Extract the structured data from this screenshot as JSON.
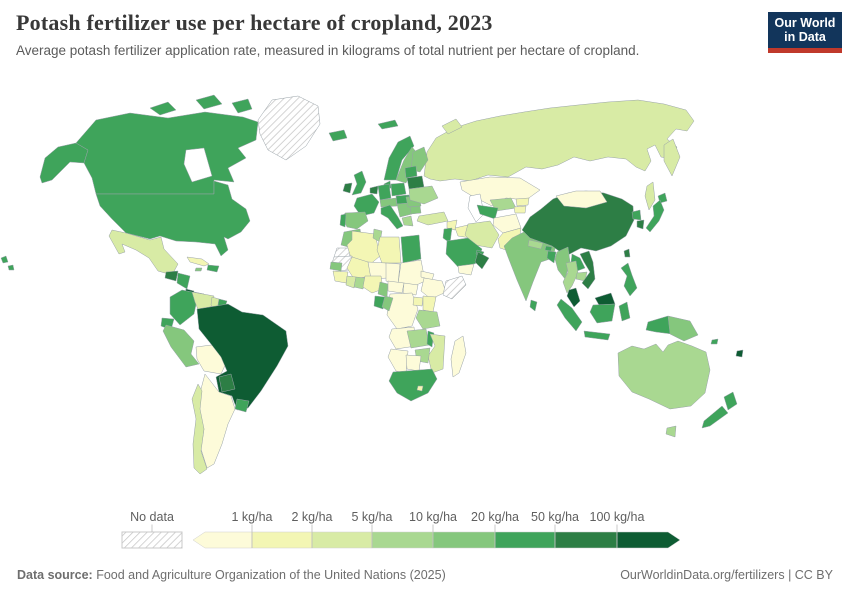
{
  "header": {
    "title": "Potash fertilizer use per hectare of cropland, 2023",
    "subtitle": "Average potash fertilizer application rate, measured in kilograms of total nutrient per hectare of cropland.",
    "logo": {
      "line1": "Our World",
      "line2": "in Data",
      "bg_color": "#12355b",
      "accent_color": "#c0392b"
    }
  },
  "legend": {
    "no_data_label": "No data",
    "tick_labels": [
      "1 kg/ha",
      "2 kg/ha",
      "5 kg/ha",
      "10 kg/ha",
      "20 kg/ha",
      "50 kg/ha",
      "100 kg/ha"
    ]
  },
  "footer": {
    "source_label": "Data source:",
    "source_text": "Food and Agriculture Organization of the United Nations (2025)",
    "right_text": "OurWorldinData.org/fertilizers | CC BY"
  },
  "chart_data": {
    "type": "heatmap",
    "subtype": "choropleth-world-map",
    "title": "Potash fertilizer use per hectare of cropland, 2023",
    "unit": "kg/ha",
    "year": 2023,
    "legend_position": "bottom",
    "bins": [
      {
        "range": "<1",
        "color": "#fdfbd9"
      },
      {
        "range": "1-2",
        "color": "#f3f6b4"
      },
      {
        "range": "2-5",
        "color": "#d8eba5"
      },
      {
        "range": "5-10",
        "color": "#a9d891"
      },
      {
        "range": "10-20",
        "color": "#85c77d"
      },
      {
        "range": "20-50",
        "color": "#3fa45b"
      },
      {
        "range": "50-100",
        "color": "#2d7e45"
      },
      {
        "range": ">100",
        "color": "#0e5c33"
      }
    ],
    "no_data_style": "diagonal-hatch",
    "countries": {
      "United States": "20-50",
      "Canada": "20-50",
      "Greenland": "No data",
      "Mexico": "2-5",
      "Guatemala": "50-100",
      "Honduras": "20-50",
      "Costa Rica": ">100",
      "Panama": "20-50",
      "Cuba": "1-2",
      "Dominican Republic": "20-50",
      "Jamaica": "10-20",
      "Colombia": "20-50",
      "Venezuela": "2-5",
      "Guyana": "2-5",
      "Suriname": "20-50",
      "Ecuador": "20-50",
      "Peru": "10-20",
      "Bolivia": "<1",
      "Brazil": ">100",
      "Paraguay": "50-100",
      "Uruguay": "20-50",
      "Argentina": "<1",
      "Chile": "2-5",
      "Iceland": "20-50",
      "Ireland": "50-100",
      "United Kingdom": "20-50",
      "Norway": "20-50",
      "Sweden": "10-20",
      "Finland": "10-20",
      "Denmark": "20-50",
      "Germany": "20-50",
      "Netherlands": "50-100",
      "France": "20-50",
      "Spain": "10-20",
      "Portugal": "20-50",
      "Italy": "20-50",
      "Poland": "20-50",
      "Czechia": "10-20",
      "Hungary": "20-50",
      "Serbia": "10-20",
      "Greece": "5-10",
      "Bulgaria": "10-20",
      "Romania": "10-20",
      "Baltic states": "20-50",
      "Belarus": "50-100",
      "Ukraine": "5-10",
      "Russia": "2-5",
      "Turkey": "2-5",
      "Syria": "1-2",
      "Iraq": "1-2",
      "Israel": "20-50",
      "Iran": "2-5",
      "Saudi Arabia": "20-50",
      "Oman": "50-100",
      "Yemen": "<1",
      "United Arab Emirates": "20-50",
      "Kazakhstan": "<1",
      "Uzbekistan": "5-10",
      "Turkmenistan": "20-50",
      "Kyrgyzstan": "1-2",
      "Tajikistan": "1-2",
      "Afghanistan": "<1",
      "Pakistan": "1-2",
      "India": "10-20",
      "Nepal": "5-10",
      "Bhutan": "20-50",
      "Bangladesh": "20-50",
      "Sri Lanka": "20-50",
      "China": "50-100",
      "Mongolia": "<1",
      "North Korea": "20-50",
      "South Korea": "50-100",
      "Japan": "20-50",
      "Taiwan": "50-100",
      "Myanmar": "10-20",
      "Thailand": "5-10",
      "Laos": "20-50",
      "Cambodia": "5-10",
      "Vietnam": "50-100",
      "Malaysia": ">100",
      "Indonesia": "20-50",
      "Philippines": "20-50",
      "Papua New Guinea": "10-20",
      "Australia": "5-10",
      "New Zealand": "20-50",
      "Fiji": ">100",
      "Solomon Islands": "20-50",
      "Morocco": "10-20",
      "Western Sahara": "No data",
      "Algeria": "1-2",
      "Tunisia": "5-10",
      "Libya": "1-2",
      "Egypt": "20-50",
      "Mauritania": "No data",
      "Mali": "1-2",
      "Niger": "<1",
      "Chad": "<1",
      "Sudan": "<1",
      "South Sudan": "<1",
      "Eritrea": "<1",
      "Ethiopia": "<1",
      "Somalia": "No data",
      "Senegal": "10-20",
      "Guinea": "1-2",
      "Ivory Coast": "2-5",
      "Ghana": "5-10",
      "Nigeria": "1-2",
      "Cameroon": "10-20",
      "Central African Republic": "<1",
      "Gabon": "20-50",
      "Republic of the Congo": "10-20",
      "Democratic Republic of the Congo": "<1",
      "Uganda": "1-2",
      "Kenya": "1-2",
      "Tanzania": "5-10",
      "Angola": "<1",
      "Zambia": "5-10",
      "Malawi": "20-50",
      "Mozambique": "2-5",
      "Zimbabwe": "5-10",
      "Namibia": "<1",
      "Botswana": "<1",
      "South Africa": "20-50",
      "Lesotho": "1-2",
      "Madagascar": "<1"
    }
  }
}
